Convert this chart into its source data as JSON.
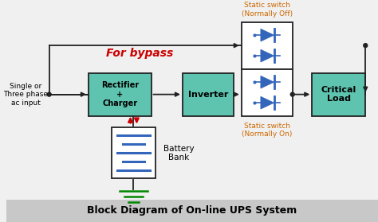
{
  "title": "Block Diagram of On-line UPS System",
  "bg_color": "#f0f0f0",
  "title_bg": "#c8c8c8",
  "box_green": "#5ec4b0",
  "box_white": "#ffffff",
  "edge_color": "#222222",
  "bypass_text": "For bypass",
  "bypass_color": "#cc0000",
  "input_text": "Single or\nThree phase\nac input",
  "rectifier_text": "Rectifier\n+\nCharger",
  "inverter_text": "Inverter",
  "load_text": "Critical\nLoad",
  "battery_text": "Battery\nBank",
  "static_off_text": "Static switch\n(Normally Off)",
  "static_on_text": "Static switch\n(Normally On)",
  "label_orange": "#cc6600",
  "red_color": "#cc0000",
  "diode_blue": "#3366bb",
  "ground_green": "#008800",
  "line_color": "#222222"
}
